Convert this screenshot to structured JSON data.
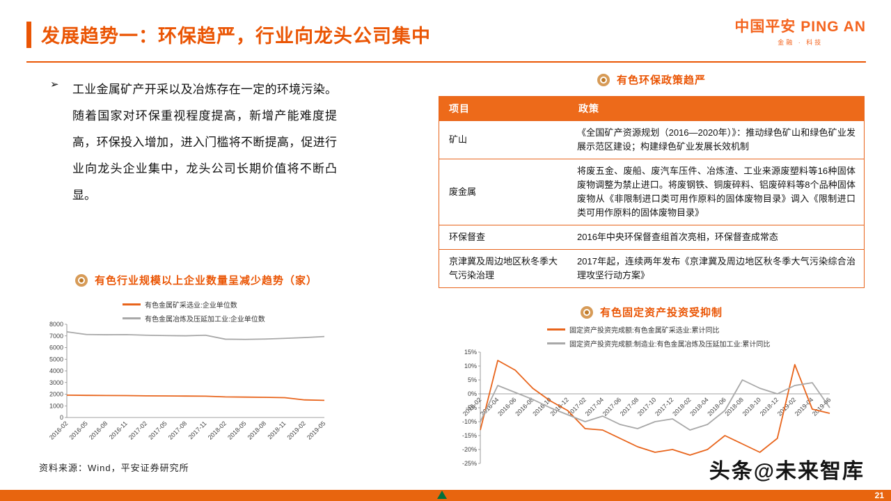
{
  "header": {
    "title": "发展趋势一：环保趋严，行业向龙头公司集中",
    "logo_cn": "中国平安",
    "logo_en": "PING AN",
    "logo_sub": "金融 · 科技"
  },
  "left_panel": {
    "bullet_marker": "➢",
    "bullet_text": "工业金属矿产开采以及冶炼存在一定的环境污染。随着国家对环保重视程度提高，新增产能难度提高，环保投入增加，进入门槛将不断提高，促进行业向龙头企业集中，龙头公司长期价值将不断凸显。",
    "source_note": "资料来源：Wind，平安证券研究所"
  },
  "right_panel": {
    "policy_section_title": "有色环保政策趋严",
    "table": {
      "headers": [
        "项目",
        "政策"
      ],
      "rows": [
        [
          "矿山",
          "《全国矿产资源规划（2016—2020年）》：推动绿色矿山和绿色矿业发展示范区建设；构建绿色矿业发展长效机制"
        ],
        [
          "废金属",
          "将废五金、废船、废汽车压件、冶炼渣、工业来源废塑料等16种固体废物调整为禁止进口。将废钢铁、铜废碎料、铝废碎料等8个品种固体废物从《非限制进口类可用作原料的固体废物目录》调入《限制进口类可用作原料的固体废物目录》"
        ],
        [
          "环保督查",
          "2016年中央环保督查组首次亮相，环保督查成常态"
        ],
        [
          "京津冀及周边地区秋冬季大气污染治理",
          "2017年起，连续两年发布《京津冀及周边地区秋冬季大气污染综合治理攻坚行动方案》"
        ]
      ]
    }
  },
  "footer": {
    "watermark": "头条@未来智库",
    "page_number": "21"
  },
  "colors": {
    "accent_orange": "#EA5504",
    "table_header_orange": "#ED6A1A",
    "series_orange": "#E8641B",
    "series_gray": "#A8A8A8",
    "footer_green": "#00703C"
  },
  "chart_data": [
    {
      "type": "line",
      "title": "有色行业规模以上企业数量呈减少趋势（家）",
      "categories": [
        "2016-02",
        "2016-05",
        "2016-08",
        "2016-11",
        "2017-02",
        "2017-05",
        "2017-08",
        "2017-11",
        "2018-02",
        "2018-05",
        "2018-08",
        "2018-11",
        "2019-02",
        "2019-05"
      ],
      "series": [
        {
          "name": "有色金属矿采选业:企业单位数",
          "color": "#E8641B",
          "values": [
            1920,
            1900,
            1890,
            1880,
            1860,
            1850,
            1840,
            1830,
            1770,
            1750,
            1730,
            1700,
            1510,
            1470
          ]
        },
        {
          "name": "有色金属冶炼及压延加工业:企业单位数",
          "color": "#A8A8A8",
          "values": [
            7350,
            7120,
            7100,
            7110,
            7060,
            7030,
            7010,
            7060,
            6720,
            6700,
            6730,
            6790,
            6860,
            6950
          ]
        }
      ],
      "ylim": [
        0,
        8000
      ],
      "yticks": [
        0,
        1000,
        2000,
        3000,
        4000,
        5000,
        6000,
        7000,
        8000
      ],
      "ytick_suffix": "",
      "x_labels_rotated": true,
      "x_labels_at_zero": false,
      "grid": false,
      "legend_position": "top"
    },
    {
      "type": "line",
      "title": "有色固定资产投资受抑制",
      "categories": [
        "2016-02",
        "2016-04",
        "2016-06",
        "2016-08",
        "2016-10",
        "2016-12",
        "2017-02",
        "2017-04",
        "2017-06",
        "2017-08",
        "2017-10",
        "2017-12",
        "2018-02",
        "2018-04",
        "2018-06",
        "2018-08",
        "2018-10",
        "2018-12",
        "2019-02",
        "2019-04",
        "2019-06"
      ],
      "series": [
        {
          "name": "固定资产投资完成额:有色金属矿采选业:累计同比",
          "color": "#E8641B",
          "values": [
            -13,
            12,
            8.5,
            2,
            -2.5,
            -6,
            -12.5,
            -13,
            -16,
            -19,
            -21,
            -20,
            -22,
            -20,
            -15,
            -18,
            -21,
            -16,
            10.5,
            -5.5,
            -7
          ]
        },
        {
          "name": "固定资产投资完成额:制造业:有色金属冶炼及压延加工业:累计同比",
          "color": "#A8A8A8",
          "values": [
            -10,
            3,
            0.5,
            -2,
            -5,
            -7.5,
            -10,
            -8,
            -11,
            -12.5,
            -10,
            -9,
            -13,
            -11,
            -6,
            5,
            2,
            0,
            3,
            4,
            -5
          ]
        }
      ],
      "ylim": [
        -25,
        15
      ],
      "yticks": [
        15,
        10,
        5,
        0,
        -5,
        -10,
        -15,
        -20,
        -25
      ],
      "ytick_suffix": "%",
      "x_labels_rotated": true,
      "x_labels_at_zero": true,
      "grid": false,
      "legend_position": "top"
    }
  ]
}
